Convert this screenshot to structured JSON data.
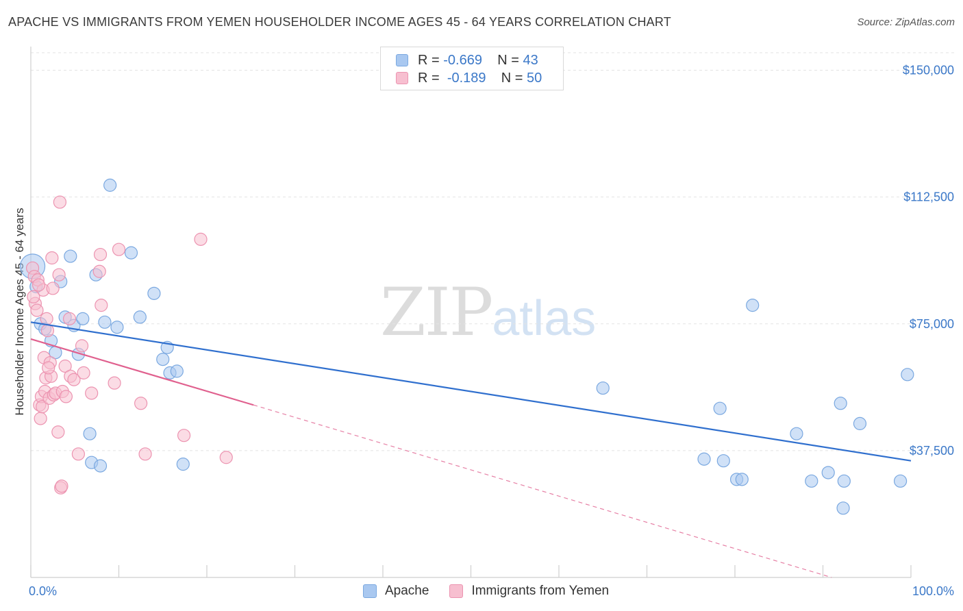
{
  "title": "APACHE VS IMMIGRANTS FROM YEMEN HOUSEHOLDER INCOME AGES 45 - 64 YEARS CORRELATION CHART",
  "source": "Source: ZipAtlas.com",
  "watermark": {
    "zip": "ZIP",
    "atlas": "atlas"
  },
  "legend": {
    "rows": [
      {
        "r_label": "R =",
        "r_value": "-0.669",
        "n_label": "N =",
        "n_value": "43",
        "color": "#a9c8f0",
        "border": "#7aa8e0"
      },
      {
        "r_label": "R =",
        "r_value": "-0.189",
        "n_label": "N =",
        "n_value": "50",
        "color": "#f7bfd0",
        "border": "#ec93b0"
      }
    ]
  },
  "bottom_legend": [
    {
      "label": "Apache",
      "color": "#a9c8f0",
      "border": "#7aa8e0"
    },
    {
      "label": "Immigrants from Yemen",
      "color": "#f7bfd0",
      "border": "#ec93b0"
    }
  ],
  "chart_data": {
    "type": "scatter",
    "title": "APACHE VS IMMIGRANTS FROM YEMEN HOUSEHOLDER INCOME AGES 45 - 64 YEARS CORRELATION CHART",
    "xlabel": "",
    "ylabel": "Householder Income Ages 45 - 64 years",
    "xlim": [
      0,
      100
    ],
    "ylim": [
      0,
      157000
    ],
    "x_tick_labels": [
      "0.0%",
      "100.0%"
    ],
    "y_ticks": [
      37500,
      75000,
      112500,
      150000
    ],
    "y_tick_labels": [
      "$37,500",
      "$75,000",
      "$112,500",
      "$150,000"
    ],
    "grid": true,
    "series": [
      {
        "name": "Apache",
        "color": "#7aa8e0",
        "fill": "#a9c8f0",
        "trend": {
          "x": [
            0,
            100
          ],
          "y": [
            75500,
            34500
          ],
          "color": "#2f6fce",
          "dashed_extension": false
        },
        "points": [
          {
            "x": 0.2,
            "y": 92000,
            "big": true
          },
          {
            "x": 0.6,
            "y": 86000
          },
          {
            "x": 1.1,
            "y": 75000
          },
          {
            "x": 1.6,
            "y": 73500
          },
          {
            "x": 2.3,
            "y": 70000
          },
          {
            "x": 2.8,
            "y": 66500
          },
          {
            "x": 3.4,
            "y": 87500
          },
          {
            "x": 3.9,
            "y": 77000
          },
          {
            "x": 4.5,
            "y": 95000
          },
          {
            "x": 4.9,
            "y": 74500
          },
          {
            "x": 5.4,
            "y": 66000
          },
          {
            "x": 5.9,
            "y": 76500
          },
          {
            "x": 6.7,
            "y": 42500
          },
          {
            "x": 6.9,
            "y": 34000
          },
          {
            "x": 7.4,
            "y": 89500
          },
          {
            "x": 7.9,
            "y": 33000
          },
          {
            "x": 8.4,
            "y": 75500
          },
          {
            "x": 9.0,
            "y": 116000
          },
          {
            "x": 9.8,
            "y": 74000
          },
          {
            "x": 11.4,
            "y": 96000
          },
          {
            "x": 12.4,
            "y": 77000
          },
          {
            "x": 14.0,
            "y": 84000
          },
          {
            "x": 15.0,
            "y": 64500
          },
          {
            "x": 15.5,
            "y": 68000
          },
          {
            "x": 15.8,
            "y": 60500
          },
          {
            "x": 16.6,
            "y": 61000
          },
          {
            "x": 17.3,
            "y": 33500
          },
          {
            "x": 65.0,
            "y": 56000
          },
          {
            "x": 76.5,
            "y": 35000
          },
          {
            "x": 78.3,
            "y": 50000
          },
          {
            "x": 78.7,
            "y": 34500
          },
          {
            "x": 80.2,
            "y": 29000
          },
          {
            "x": 80.8,
            "y": 29000
          },
          {
            "x": 82.0,
            "y": 80500
          },
          {
            "x": 87.0,
            "y": 42500
          },
          {
            "x": 88.7,
            "y": 28500
          },
          {
            "x": 90.6,
            "y": 31000
          },
          {
            "x": 92.0,
            "y": 51500
          },
          {
            "x": 92.4,
            "y": 28500
          },
          {
            "x": 92.3,
            "y": 20500
          },
          {
            "x": 94.2,
            "y": 45500
          },
          {
            "x": 98.8,
            "y": 28500
          },
          {
            "x": 99.6,
            "y": 60000
          }
        ]
      },
      {
        "name": "Immigrants from Yemen",
        "color": "#ec93b0",
        "fill": "#f7bfd0",
        "trend": {
          "x": [
            0,
            25.3
          ],
          "y": [
            70500,
            51000
          ],
          "color": "#e0608e",
          "dashed_to": {
            "x": 100,
            "y": -7000
          }
        },
        "points": [
          {
            "x": 0.2,
            "y": 91500
          },
          {
            "x": 0.4,
            "y": 89000
          },
          {
            "x": 0.5,
            "y": 81000
          },
          {
            "x": 0.7,
            "y": 79000
          },
          {
            "x": 0.8,
            "y": 88000
          },
          {
            "x": 1.0,
            "y": 51000
          },
          {
            "x": 1.1,
            "y": 47000
          },
          {
            "x": 1.2,
            "y": 53500
          },
          {
            "x": 1.3,
            "y": 50500
          },
          {
            "x": 1.4,
            "y": 85000
          },
          {
            "x": 1.5,
            "y": 65000
          },
          {
            "x": 1.6,
            "y": 55000
          },
          {
            "x": 1.7,
            "y": 59000
          },
          {
            "x": 1.8,
            "y": 76500
          },
          {
            "x": 1.9,
            "y": 73000
          },
          {
            "x": 2.1,
            "y": 53000
          },
          {
            "x": 2.2,
            "y": 63500
          },
          {
            "x": 2.3,
            "y": 59500
          },
          {
            "x": 2.4,
            "y": 94500
          },
          {
            "x": 2.5,
            "y": 85500
          },
          {
            "x": 2.6,
            "y": 54000
          },
          {
            "x": 2.8,
            "y": 54500
          },
          {
            "x": 3.1,
            "y": 43000
          },
          {
            "x": 3.2,
            "y": 89500
          },
          {
            "x": 3.3,
            "y": 111000
          },
          {
            "x": 3.4,
            "y": 26500
          },
          {
            "x": 3.5,
            "y": 27000
          },
          {
            "x": 3.6,
            "y": 55000
          },
          {
            "x": 3.9,
            "y": 62500
          },
          {
            "x": 4.4,
            "y": 76500
          },
          {
            "x": 4.5,
            "y": 59500
          },
          {
            "x": 4.9,
            "y": 58500
          },
          {
            "x": 5.4,
            "y": 36500
          },
          {
            "x": 5.8,
            "y": 68500
          },
          {
            "x": 6.0,
            "y": 60500
          },
          {
            "x": 6.9,
            "y": 54500
          },
          {
            "x": 7.8,
            "y": 90500
          },
          {
            "x": 7.9,
            "y": 95500
          },
          {
            "x": 8.0,
            "y": 80500
          },
          {
            "x": 9.5,
            "y": 57500
          },
          {
            "x": 10.0,
            "y": 97000
          },
          {
            "x": 12.5,
            "y": 51500
          },
          {
            "x": 13.0,
            "y": 36500
          },
          {
            "x": 17.4,
            "y": 42000
          },
          {
            "x": 19.3,
            "y": 100000
          },
          {
            "x": 22.2,
            "y": 35500
          },
          {
            "x": 0.3,
            "y": 83000
          },
          {
            "x": 0.9,
            "y": 86500
          },
          {
            "x": 2.0,
            "y": 62000
          },
          {
            "x": 4.0,
            "y": 53500
          }
        ]
      }
    ]
  }
}
